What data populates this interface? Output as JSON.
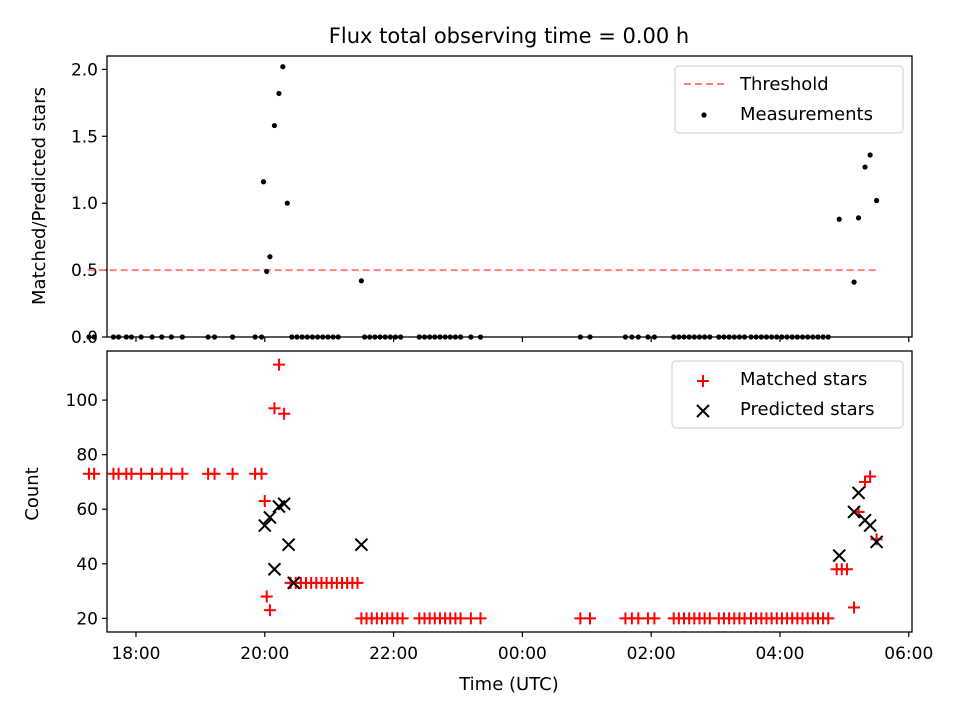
{
  "chart_data": [
    {
      "type": "scatter",
      "title": "Flux total observing time = 0.00 h",
      "xlabel": "",
      "ylabel": "Matched/Predicted stars",
      "x_unit": "hours since 00:00 UTC",
      "xlim": [
        -6.45,
        6.05
      ],
      "ylim": [
        0,
        2.1
      ],
      "yticks": [
        0.0,
        0.5,
        1.0,
        1.5,
        2.0
      ],
      "ytick_labels": [
        "0.0",
        "0.5",
        "1.0",
        "1.5",
        "2.0"
      ],
      "xticks": [
        -6,
        -4,
        -2,
        0,
        2,
        4,
        6
      ],
      "legend_position": "top-right",
      "series": [
        {
          "name": "Threshold",
          "style": "dashed-line",
          "color": "#ff7f7f",
          "points": [
            [
              -6.75,
              0.5
            ],
            [
              5.5,
              0.5
            ]
          ]
        },
        {
          "name": "Measurements",
          "style": "dot",
          "color": "#000000",
          "points": [
            [
              -6.73,
              0
            ],
            [
              -6.65,
              0
            ],
            [
              -6.35,
              0
            ],
            [
              -6.27,
              0
            ],
            [
              -6.15,
              0
            ],
            [
              -6.07,
              0
            ],
            [
              -5.92,
              0
            ],
            [
              -5.75,
              0
            ],
            [
              -5.6,
              0
            ],
            [
              -5.45,
              0
            ],
            [
              -5.28,
              0
            ],
            [
              -4.88,
              0
            ],
            [
              -4.78,
              0
            ],
            [
              -4.5,
              0
            ],
            [
              -4.15,
              0
            ],
            [
              -4.05,
              0
            ],
            [
              -4.02,
              1.16
            ],
            [
              -3.97,
              0.49
            ],
            [
              -3.92,
              0.6
            ],
            [
              -3.85,
              1.58
            ],
            [
              -3.78,
              1.82
            ],
            [
              -3.72,
              2.02
            ],
            [
              -3.65,
              1.0
            ],
            [
              -3.58,
              0
            ],
            [
              -3.5,
              0
            ],
            [
              -3.42,
              0
            ],
            [
              -3.34,
              0
            ],
            [
              -3.26,
              0
            ],
            [
              -3.18,
              0
            ],
            [
              -3.1,
              0
            ],
            [
              -3.02,
              0
            ],
            [
              -2.94,
              0
            ],
            [
              -2.86,
              0
            ],
            [
              -2.5,
              0.42
            ],
            [
              -2.45,
              0
            ],
            [
              -2.37,
              0
            ],
            [
              -2.29,
              0
            ],
            [
              -2.21,
              0
            ],
            [
              -2.13,
              0
            ],
            [
              -2.05,
              0
            ],
            [
              -1.97,
              0
            ],
            [
              -1.89,
              0
            ],
            [
              -1.6,
              0
            ],
            [
              -1.52,
              0
            ],
            [
              -1.44,
              0
            ],
            [
              -1.36,
              0
            ],
            [
              -1.28,
              0
            ],
            [
              -1.2,
              0
            ],
            [
              -1.12,
              0
            ],
            [
              -1.04,
              0
            ],
            [
              -0.96,
              0
            ],
            [
              -0.8,
              0
            ],
            [
              -0.65,
              0
            ],
            [
              0.9,
              0
            ],
            [
              1.05,
              0
            ],
            [
              1.6,
              0
            ],
            [
              1.7,
              0
            ],
            [
              1.8,
              0
            ],
            [
              1.95,
              0
            ],
            [
              2.05,
              0
            ],
            [
              2.35,
              0
            ],
            [
              2.43,
              0
            ],
            [
              2.51,
              0
            ],
            [
              2.59,
              0
            ],
            [
              2.67,
              0
            ],
            [
              2.75,
              0
            ],
            [
              2.83,
              0
            ],
            [
              2.91,
              0
            ],
            [
              3.05,
              0
            ],
            [
              3.13,
              0
            ],
            [
              3.21,
              0
            ],
            [
              3.29,
              0
            ],
            [
              3.37,
              0
            ],
            [
              3.45,
              0
            ],
            [
              3.55,
              0
            ],
            [
              3.63,
              0
            ],
            [
              3.71,
              0
            ],
            [
              3.79,
              0
            ],
            [
              3.87,
              0
            ],
            [
              3.95,
              0
            ],
            [
              4.03,
              0
            ],
            [
              4.11,
              0
            ],
            [
              4.19,
              0
            ],
            [
              4.27,
              0
            ],
            [
              4.35,
              0
            ],
            [
              4.43,
              0
            ],
            [
              4.51,
              0
            ],
            [
              4.59,
              0
            ],
            [
              4.67,
              0
            ],
            [
              4.75,
              0
            ],
            [
              4.92,
              0.88
            ],
            [
              5.15,
              0.41
            ],
            [
              5.22,
              0.89
            ],
            [
              5.32,
              1.27
            ],
            [
              5.4,
              1.36
            ],
            [
              5.5,
              1.02
            ]
          ]
        }
      ]
    },
    {
      "type": "scatter",
      "title": "",
      "xlabel": "Time (UTC)",
      "ylabel": "Count",
      "x_unit": "hours since 00:00 UTC",
      "xlim": [
        -6.45,
        6.05
      ],
      "ylim": [
        15,
        118
      ],
      "yticks": [
        20,
        40,
        60,
        80,
        100
      ],
      "ytick_labels": [
        "20",
        "40",
        "60",
        "80",
        "100"
      ],
      "xticks": [
        -6,
        -4,
        -2,
        0,
        2,
        4,
        6
      ],
      "xtick_labels": [
        "18:00",
        "20:00",
        "22:00",
        "00:00",
        "02:00",
        "04:00",
        "06:00"
      ],
      "legend_position": "top-right",
      "series": [
        {
          "name": "Matched stars",
          "style": "plus",
          "color": "#ff0000",
          "points": [
            [
              -6.73,
              73
            ],
            [
              -6.65,
              73
            ],
            [
              -6.35,
              73
            ],
            [
              -6.27,
              73
            ],
            [
              -6.15,
              73
            ],
            [
              -6.07,
              73
            ],
            [
              -5.92,
              73
            ],
            [
              -5.75,
              73
            ],
            [
              -5.6,
              73
            ],
            [
              -5.45,
              73
            ],
            [
              -5.28,
              73
            ],
            [
              -4.88,
              73
            ],
            [
              -4.78,
              73
            ],
            [
              -4.5,
              73
            ],
            [
              -4.15,
              73
            ],
            [
              -4.05,
              73
            ],
            [
              -4.0,
              63
            ],
            [
              -3.97,
              28
            ],
            [
              -3.92,
              23
            ],
            [
              -3.85,
              97
            ],
            [
              -3.78,
              113
            ],
            [
              -3.7,
              95
            ],
            [
              -3.6,
              33
            ],
            [
              -3.52,
              33
            ],
            [
              -3.44,
              33
            ],
            [
              -3.36,
              33
            ],
            [
              -3.28,
              33
            ],
            [
              -3.2,
              33
            ],
            [
              -3.12,
              33
            ],
            [
              -3.04,
              33
            ],
            [
              -2.96,
              33
            ],
            [
              -2.88,
              33
            ],
            [
              -2.8,
              33
            ],
            [
              -2.72,
              33
            ],
            [
              -2.64,
              33
            ],
            [
              -2.56,
              33
            ],
            [
              -2.5,
              20
            ],
            [
              -2.42,
              20
            ],
            [
              -2.34,
              20
            ],
            [
              -2.26,
              20
            ],
            [
              -2.18,
              20
            ],
            [
              -2.1,
              20
            ],
            [
              -2.02,
              20
            ],
            [
              -1.94,
              20
            ],
            [
              -1.86,
              20
            ],
            [
              -1.6,
              20
            ],
            [
              -1.52,
              20
            ],
            [
              -1.44,
              20
            ],
            [
              -1.36,
              20
            ],
            [
              -1.28,
              20
            ],
            [
              -1.2,
              20
            ],
            [
              -1.12,
              20
            ],
            [
              -1.04,
              20
            ],
            [
              -0.96,
              20
            ],
            [
              -0.8,
              20
            ],
            [
              -0.65,
              20
            ],
            [
              0.9,
              20
            ],
            [
              1.05,
              20
            ],
            [
              1.6,
              20
            ],
            [
              1.7,
              20
            ],
            [
              1.8,
              20
            ],
            [
              1.95,
              20
            ],
            [
              2.05,
              20
            ],
            [
              2.35,
              20
            ],
            [
              2.43,
              20
            ],
            [
              2.51,
              20
            ],
            [
              2.59,
              20
            ],
            [
              2.67,
              20
            ],
            [
              2.75,
              20
            ],
            [
              2.83,
              20
            ],
            [
              2.91,
              20
            ],
            [
              3.05,
              20
            ],
            [
              3.13,
              20
            ],
            [
              3.21,
              20
            ],
            [
              3.29,
              20
            ],
            [
              3.37,
              20
            ],
            [
              3.45,
              20
            ],
            [
              3.55,
              20
            ],
            [
              3.63,
              20
            ],
            [
              3.71,
              20
            ],
            [
              3.79,
              20
            ],
            [
              3.87,
              20
            ],
            [
              3.95,
              20
            ],
            [
              4.03,
              20
            ],
            [
              4.11,
              20
            ],
            [
              4.19,
              20
            ],
            [
              4.27,
              20
            ],
            [
              4.35,
              20
            ],
            [
              4.43,
              20
            ],
            [
              4.51,
              20
            ],
            [
              4.59,
              20
            ],
            [
              4.67,
              20
            ],
            [
              4.75,
              20
            ],
            [
              4.88,
              38
            ],
            [
              4.96,
              38
            ],
            [
              5.04,
              38
            ],
            [
              5.15,
              24
            ],
            [
              5.22,
              59
            ],
            [
              5.32,
              70
            ],
            [
              5.4,
              72
            ],
            [
              5.5,
              49
            ]
          ]
        },
        {
          "name": "Predicted stars",
          "style": "x",
          "color": "#000000",
          "points": [
            [
              -4.0,
              54
            ],
            [
              -3.92,
              57
            ],
            [
              -3.85,
              38
            ],
            [
              -3.78,
              61
            ],
            [
              -3.7,
              62
            ],
            [
              -3.63,
              47
            ],
            [
              -3.55,
              33
            ],
            [
              -2.5,
              47
            ],
            [
              4.92,
              43
            ],
            [
              5.15,
              59
            ],
            [
              5.22,
              66
            ],
            [
              5.32,
              56
            ],
            [
              5.4,
              54
            ],
            [
              5.5,
              48
            ]
          ]
        }
      ]
    }
  ]
}
